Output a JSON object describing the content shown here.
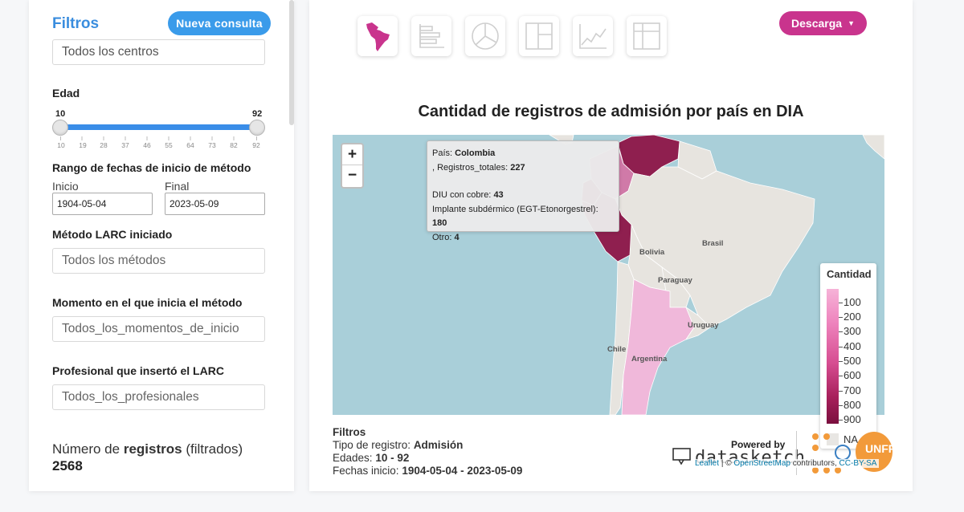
{
  "filters": {
    "title": "Filtros",
    "new_query_label": "Nueva consulta",
    "center_value": "Todos los centros",
    "age": {
      "label": "Edad",
      "min": "10",
      "max": "92",
      "ticks": [
        "10",
        "19",
        "28",
        "37",
        "46",
        "55",
        "64",
        "73",
        "82",
        "92"
      ]
    },
    "date_range": {
      "label": "Rango de fechas de inicio de método",
      "start_label": "Inicio",
      "end_label": "Final",
      "start_value": "1904-05-04",
      "end_value": "2023-05-09"
    },
    "method": {
      "label": "Método LARC iniciado",
      "placeholder": "Todos los métodos"
    },
    "moment": {
      "label": "Momento en el que inicia el método",
      "placeholder": "Todos_los_momentos_de_inicio"
    },
    "professional": {
      "label": "Profesional que insertó el LARC",
      "placeholder": "Todos_los_profesionales"
    },
    "records": {
      "prefix": "Número de",
      "strong": "registros",
      "suffix": "(filtrados)",
      "value": "2568"
    }
  },
  "toolbar": {
    "chart_types": [
      "map-icon",
      "bar-chart-icon",
      "pie-chart-icon",
      "treemap-icon",
      "line-chart-icon",
      "table-icon"
    ],
    "download_label": "Descarga"
  },
  "chart": {
    "title": "Cantidad de registros de admisión por país en DIA"
  },
  "map": {
    "zoom_in": "+",
    "zoom_out": "−",
    "tooltip": {
      "country_label": "País:",
      "country": "Colombia",
      "total_label": ", Registros_totales:",
      "total": "227",
      "diu_label": "DIU con cobre:",
      "diu": "43",
      "implant_label": "Implante subdérmico (EGT-Etonorgestrel):",
      "implant": "180",
      "other_label": "Otro:",
      "other": "4"
    },
    "labels": {
      "brasil": "Brasil",
      "bolivia": "Bolivia",
      "paraguay": "Paraguay",
      "uruguay": "Uruguay",
      "chile": "Chile",
      "argentina": "Argentina"
    },
    "legend": {
      "title": "Cantidad",
      "values": [
        "100",
        "200",
        "300",
        "400",
        "500",
        "600",
        "700",
        "800",
        "900"
      ],
      "na": "NA",
      "colors": {
        "low": "#f6b3d8",
        "high": "#7a0f3e",
        "na": "#e8e6e3"
      }
    },
    "attribution": {
      "leaflet": "Leaflet",
      "sep": "| ©",
      "osm": "OpenStreetMap",
      "rest": "contributors,",
      "license": "CC-BY-SA"
    }
  },
  "footer": {
    "filters_title": "Filtros",
    "type_label": "Tipo de registro:",
    "type_value": "Admisión",
    "ages_label": "Edades:",
    "ages_value": "10 - 92",
    "dates_label": "Fechas inicio:",
    "dates_value": "1904-05-04 - 2023-05-09",
    "powered_by": "Powered by",
    "brand": "datasketch",
    "partner": "UNFPA"
  }
}
